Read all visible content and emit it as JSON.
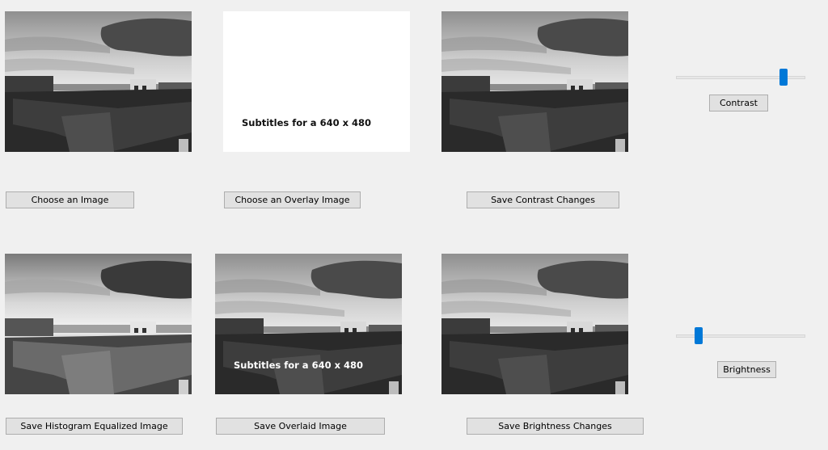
{
  "images": {
    "original": {
      "kind": "rooftop-sunset-grayscale"
    },
    "overlay": {
      "kind": "white-card",
      "caption": "Subtitles for a 640 x 480"
    },
    "contrast": {
      "kind": "rooftop-sunset-grayscale"
    },
    "equalized": {
      "kind": "rooftop-sunset-grayscale"
    },
    "overlaid": {
      "kind": "rooftop-sunset-grayscale",
      "caption": "Subtitles for a 640 x 480"
    },
    "brightness": {
      "kind": "rooftop-sunset-grayscale"
    }
  },
  "buttons": {
    "choose_image": "Choose an Image",
    "choose_overlay": "Choose an Overlay Image",
    "save_contrast": "Save Contrast Changes",
    "contrast": "Contrast",
    "save_equalized": "Save Histogram Equalized Image",
    "save_overlaid": "Save Overlaid Image",
    "save_brightness": "Save Brightness Changes",
    "brightness": "Brightness"
  },
  "sliders": {
    "contrast": {
      "value": 0.85
    },
    "brightness": {
      "value": 0.15
    }
  },
  "colors": {
    "background": "#f0f0f0",
    "accent": "#0078d7",
    "button_face": "#e1e1e1",
    "button_border": "#adadad"
  }
}
